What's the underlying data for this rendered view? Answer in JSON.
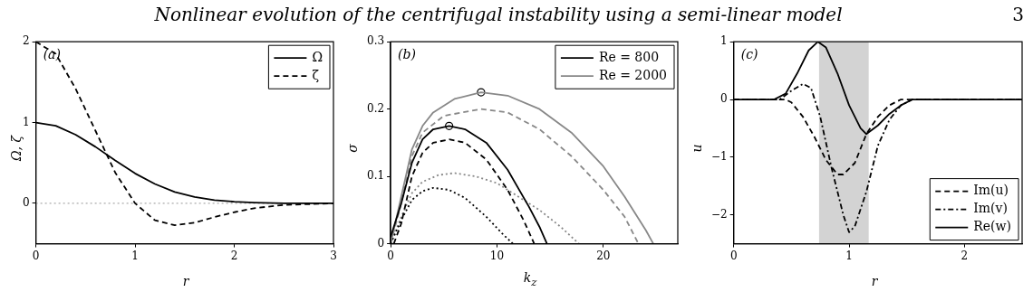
{
  "chart_data": [
    {
      "type": "other",
      "title": "Nonlinear evolution of the centrifugal instability using a semi-linear model",
      "annotations": [
        "3"
      ]
    },
    {
      "type": "line",
      "xlabel": "r",
      "ylabel": "Ω, ζ",
      "xlim": [
        0,
        3
      ],
      "xticks": [
        0,
        1,
        2,
        3
      ],
      "ylim": [
        -0.5,
        2
      ],
      "yticks": [
        0,
        1,
        2
      ],
      "legend": "top right",
      "annotations": [
        "(a)"
      ],
      "ref_lines": [
        {
          "axis": "y",
          "value": 0,
          "color": "#aaaaaa",
          "line_style": "dotted"
        }
      ],
      "series": [
        {
          "name": "Ω",
          "color": "#000000",
          "line_style": "solid",
          "x": [
            0,
            0.2,
            0.4,
            0.6,
            0.8,
            1,
            1.2,
            1.4,
            1.6,
            1.8,
            2,
            2.2,
            2.5,
            3
          ],
          "values": [
            1,
            0.96,
            0.85,
            0.7,
            0.53,
            0.37,
            0.24,
            0.14,
            0.08,
            0.04,
            0.02,
            0.01,
            0,
            0
          ]
        },
        {
          "name": "ζ",
          "color": "#000000",
          "line_style": "dashed",
          "x": [
            0,
            0.2,
            0.4,
            0.6,
            0.8,
            1,
            1.2,
            1.4,
            1.6,
            1.8,
            2,
            2.2,
            2.5,
            3
          ],
          "values": [
            2,
            1.85,
            1.42,
            0.9,
            0.38,
            0,
            -0.21,
            -0.27,
            -0.24,
            -0.17,
            -0.11,
            -0.06,
            -0.02,
            0
          ]
        }
      ]
    },
    {
      "type": "line",
      "xlabel": "k$_{z}$",
      "ylabel": "σ",
      "xlim": [
        0,
        27
      ],
      "xticks": [
        0,
        10,
        20
      ],
      "ylim": [
        0,
        0.3
      ],
      "yticks": [
        0,
        0.1,
        0.2,
        0.3
      ],
      "legend": "top right",
      "annotations": [
        "(b)"
      ],
      "series": [
        {
          "name": "Re = 800",
          "color": "#000000",
          "line_style": "solid",
          "x": [
            0,
            1,
            2,
            3,
            4,
            5.5,
            7,
            9,
            11,
            13,
            14,
            14.7
          ],
          "values": [
            0.01,
            0.06,
            0.12,
            0.155,
            0.17,
            0.175,
            0.17,
            0.15,
            0.11,
            0.055,
            0.025,
            0
          ]
        },
        {
          "name": "Re = 2000",
          "color": "#888888",
          "line_style": "solid",
          "x": [
            0,
            1,
            2,
            3,
            4,
            6,
            8.5,
            11,
            14,
            17,
            20,
            22,
            24,
            24.7
          ],
          "values": [
            0,
            0.07,
            0.14,
            0.175,
            0.195,
            0.215,
            0.225,
            0.22,
            0.2,
            0.165,
            0.115,
            0.07,
            0.02,
            0
          ]
        },
        {
          "color": "#000000",
          "line_style": "dashed",
          "x": [
            0.3,
            1,
            2,
            3,
            4,
            5.5,
            7,
            9,
            11,
            12.5,
            13.5
          ],
          "values": [
            0,
            0.03,
            0.1,
            0.135,
            0.15,
            0.155,
            0.15,
            0.125,
            0.08,
            0.035,
            0
          ]
        },
        {
          "color": "#000000",
          "line_style": "dotted",
          "x": [
            0,
            1,
            2,
            3,
            4,
            5.5,
            7,
            9,
            10.5,
            11.5
          ],
          "values": [
            0,
            0.035,
            0.065,
            0.078,
            0.083,
            0.08,
            0.068,
            0.04,
            0.015,
            0
          ]
        },
        {
          "color": "#888888",
          "line_style": "dashed",
          "x": [
            0,
            1,
            2,
            3,
            5,
            8.5,
            11,
            14,
            17,
            20,
            22,
            23.3
          ],
          "values": [
            0,
            0.06,
            0.13,
            0.165,
            0.19,
            0.2,
            0.195,
            0.17,
            0.13,
            0.08,
            0.04,
            0
          ]
        },
        {
          "color": "#888888",
          "line_style": "dotted",
          "x": [
            0,
            1,
            2,
            3,
            4.5,
            6,
            8,
            10,
            12,
            14,
            16,
            17.7
          ],
          "values": [
            0,
            0.04,
            0.075,
            0.092,
            0.102,
            0.105,
            0.1,
            0.09,
            0.07,
            0.05,
            0.025,
            0
          ]
        },
        {
          "type": "scatter",
          "marker": "circle",
          "color": "#000000",
          "x": [
            5.5,
            8.5
          ],
          "values": [
            0.175,
            0.225
          ]
        }
      ]
    },
    {
      "type": "line",
      "xlabel": "r",
      "ylabel": "u",
      "xlim": [
        0,
        2.5
      ],
      "xticks": [
        0,
        1,
        2
      ],
      "ylim": [
        -2.5,
        1
      ],
      "yticks": [
        -2,
        -1,
        0,
        1
      ],
      "legend": "bottom right",
      "annotations": [
        "(c)"
      ],
      "bands": [
        {
          "axis": "x",
          "from": 0.74,
          "to": 1.17,
          "color": "#d3d3d3"
        }
      ],
      "series": [
        {
          "name": "Im(u)",
          "color": "#000000",
          "line_style": "dashed",
          "x": [
            0,
            0.45,
            0.5,
            0.6,
            0.7,
            0.8,
            0.9,
            0.95,
            1.05,
            1.15,
            1.25,
            1.35,
            1.45,
            2.5
          ],
          "values": [
            0,
            0,
            -0.05,
            -0.3,
            -0.65,
            -1.05,
            -1.3,
            -1.3,
            -1.1,
            -0.6,
            -0.3,
            -0.1,
            0,
            0
          ]
        },
        {
          "name": "Im(v)",
          "color": "#000000",
          "line_style": "dashdot",
          "x": [
            0,
            0.4,
            0.5,
            0.6,
            0.67,
            0.75,
            0.85,
            0.95,
            1,
            1.05,
            1.15,
            1.25,
            1.35,
            1.45,
            1.55,
            2.5
          ],
          "values": [
            0,
            0,
            0.15,
            0.27,
            0.2,
            -0.3,
            -1.2,
            -2,
            -2.3,
            -2.2,
            -1.6,
            -0.8,
            -0.35,
            -0.1,
            0,
            0
          ]
        },
        {
          "name": "Re(w)",
          "color": "#000000",
          "line_style": "solid",
          "x": [
            0,
            0.35,
            0.45,
            0.55,
            0.65,
            0.73,
            0.8,
            0.9,
            1,
            1.1,
            1.15,
            1.25,
            1.35,
            1.45,
            1.55,
            2.5
          ],
          "values": [
            0,
            0,
            0.1,
            0.45,
            0.85,
            1,
            0.9,
            0.45,
            -0.1,
            -0.5,
            -0.6,
            -0.45,
            -0.25,
            -0.1,
            0,
            0
          ]
        }
      ]
    }
  ]
}
